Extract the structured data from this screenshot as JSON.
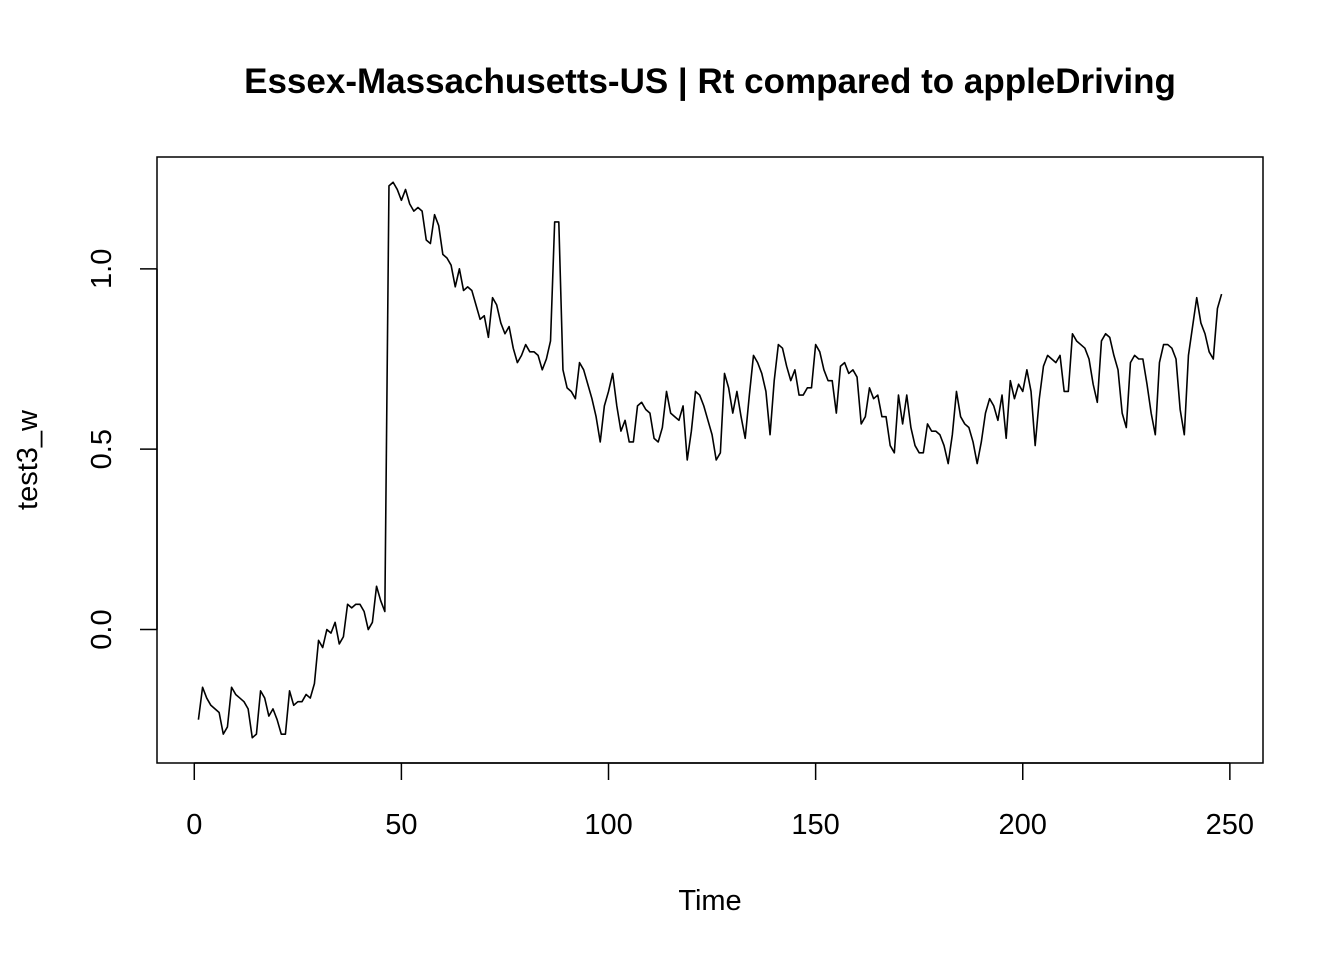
{
  "chart_data": {
    "type": "line",
    "title": "Essex-Massachusetts-US | Rt compared to appleDriving",
    "xlabel": "Time",
    "ylabel": "test3_w",
    "xlim": [
      -9,
      258
    ],
    "ylim": [
      -0.37,
      1.31
    ],
    "x_ticks": [
      0,
      50,
      100,
      150,
      200,
      250
    ],
    "x_tick_labels": [
      "0",
      "50",
      "100",
      "150",
      "200",
      "250"
    ],
    "y_ticks": [
      0.0,
      0.5,
      1.0
    ],
    "y_tick_labels": [
      "0.0",
      "0.5",
      "1.0"
    ],
    "grid": false,
    "legend": "none",
    "line_color": "#000000",
    "series": [
      {
        "x_start": 1,
        "values": [
          -0.25,
          -0.16,
          -0.19,
          -0.21,
          -0.22,
          -0.23,
          -0.29,
          -0.27,
          -0.16,
          -0.18,
          -0.19,
          -0.2,
          -0.22,
          -0.3,
          -0.29,
          -0.17,
          -0.19,
          -0.24,
          -0.22,
          -0.25,
          -0.29,
          -0.29,
          -0.17,
          -0.21,
          -0.2,
          -0.2,
          -0.18,
          -0.19,
          -0.15,
          -0.03,
          -0.05,
          0.0,
          -0.01,
          0.02,
          -0.04,
          -0.02,
          0.07,
          0.06,
          0.07,
          0.07,
          0.05,
          0.0,
          0.02,
          0.12,
          0.08,
          0.05,
          1.23,
          1.24,
          1.22,
          1.19,
          1.22,
          1.18,
          1.16,
          1.17,
          1.16,
          1.08,
          1.07,
          1.15,
          1.12,
          1.04,
          1.03,
          1.01,
          0.95,
          1.0,
          0.94,
          0.95,
          0.94,
          0.9,
          0.86,
          0.87,
          0.81,
          0.92,
          0.9,
          0.85,
          0.82,
          0.84,
          0.78,
          0.74,
          0.76,
          0.79,
          0.77,
          0.77,
          0.76,
          0.72,
          0.75,
          0.8,
          1.13,
          1.13,
          0.72,
          0.67,
          0.66,
          0.64,
          0.74,
          0.72,
          0.68,
          0.64,
          0.59,
          0.52,
          0.62,
          0.66,
          0.71,
          0.62,
          0.55,
          0.58,
          0.52,
          0.52,
          0.62,
          0.63,
          0.61,
          0.6,
          0.53,
          0.52,
          0.56,
          0.66,
          0.6,
          0.59,
          0.58,
          0.62,
          0.47,
          0.55,
          0.66,
          0.65,
          0.62,
          0.58,
          0.54,
          0.47,
          0.49,
          0.71,
          0.67,
          0.6,
          0.66,
          0.59,
          0.53,
          0.65,
          0.76,
          0.74,
          0.71,
          0.66,
          0.54,
          0.69,
          0.79,
          0.78,
          0.73,
          0.69,
          0.72,
          0.65,
          0.65,
          0.67,
          0.67,
          0.79,
          0.77,
          0.72,
          0.69,
          0.69,
          0.6,
          0.73,
          0.74,
          0.71,
          0.72,
          0.7,
          0.57,
          0.59,
          0.67,
          0.64,
          0.65,
          0.59,
          0.59,
          0.51,
          0.49,
          0.65,
          0.57,
          0.65,
          0.56,
          0.51,
          0.49,
          0.49,
          0.57,
          0.55,
          0.55,
          0.54,
          0.51,
          0.46,
          0.54,
          0.66,
          0.59,
          0.57,
          0.56,
          0.52,
          0.46,
          0.52,
          0.6,
          0.64,
          0.62,
          0.58,
          0.65,
          0.53,
          0.69,
          0.64,
          0.68,
          0.66,
          0.72,
          0.66,
          0.51,
          0.64,
          0.73,
          0.76,
          0.75,
          0.74,
          0.76,
          0.66,
          0.66,
          0.82,
          0.8,
          0.79,
          0.78,
          0.75,
          0.68,
          0.63,
          0.8,
          0.82,
          0.81,
          0.76,
          0.72,
          0.6,
          0.56,
          0.74,
          0.76,
          0.75,
          0.75,
          0.68,
          0.6,
          0.54,
          0.74,
          0.79,
          0.79,
          0.78,
          0.75,
          0.61,
          0.54,
          0.76,
          0.84,
          0.92,
          0.85,
          0.82,
          0.77,
          0.75,
          0.89,
          0.93
        ]
      }
    ]
  }
}
